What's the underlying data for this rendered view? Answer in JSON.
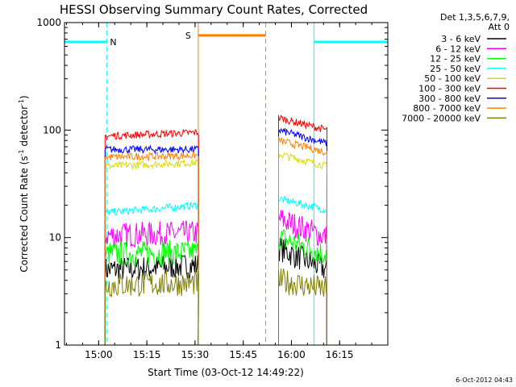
{
  "chart_data": {
    "type": "line",
    "title": "HESSI Observing Summary Count Rates, Corrected",
    "xlabel": "Start Time (03-Oct-12 14:49:22)",
    "ylabel_main": "Corrected Count Rate (s",
    "ylabel_sup1": "-1",
    "ylabel_mid": " detector",
    "ylabel_sup2": "-1",
    "ylabel_end": ")",
    "ylog": true,
    "ylim": [
      1,
      1000
    ],
    "xlim": [
      "14:49:22",
      "16:30:00"
    ],
    "xticks": [
      {
        "t": "15:00",
        "label": "15:00"
      },
      {
        "t": "15:15",
        "label": "15:15"
      },
      {
        "t": "15:30",
        "label": "15:30"
      },
      {
        "t": "15:45",
        "label": "15:45"
      },
      {
        "t": "16:00",
        "label": "16:00"
      },
      {
        "t": "16:15",
        "label": "16:15"
      }
    ],
    "yticks": [
      {
        "v": 1,
        "label": "1"
      },
      {
        "v": 10,
        "label": "10"
      },
      {
        "v": 100,
        "label": "100"
      },
      {
        "v": 1000,
        "label": "1000"
      }
    ],
    "legend_header": [
      "Det 1,3,5,6,7,9,",
      "Att 0"
    ],
    "legend_position": "right",
    "timestamp": "6-Oct-2012 04:43",
    "segments": [
      {
        "start": "15:02",
        "end": "15:31"
      },
      {
        "start": "15:56",
        "end": "16:11"
      }
    ],
    "series": [
      {
        "name": "3 - 6 keV",
        "color": "#000000",
        "seg1": [
          5.0,
          5.5
        ],
        "seg2": [
          8.0,
          5.0
        ]
      },
      {
        "name": "6 - 12 keV",
        "color": "#ff00ff",
        "seg1": [
          10.5,
          11.0
        ],
        "seg2": [
          15.0,
          10.0
        ]
      },
      {
        "name": "12 - 25 keV",
        "color": "#00ff00",
        "seg1": [
          7.0,
          7.3
        ],
        "seg2": [
          10.0,
          7.0
        ]
      },
      {
        "name": "25 - 50 keV",
        "color": "#00ffff",
        "seg1": [
          17.0,
          20.0
        ],
        "seg2": [
          23.0,
          18.0
        ]
      },
      {
        "name": "50 - 100 keV",
        "color": "#dddd00",
        "seg1": [
          46.0,
          50.0
        ],
        "seg2": [
          60.0,
          46.0
        ]
      },
      {
        "name": "100 - 300 keV",
        "color": "#ff0000",
        "seg1": [
          88.0,
          95.0
        ],
        "seg2": [
          130.0,
          100.0
        ]
      },
      {
        "name": "300 - 800 keV",
        "color": "#0000ff",
        "seg1": [
          66.0,
          66.0
        ],
        "seg2": [
          100.0,
          75.0
        ]
      },
      {
        "name": "800 - 7000 keV",
        "color": "#ff8000",
        "seg1": [
          56.0,
          58.0
        ],
        "seg2": [
          80.0,
          62.0
        ]
      },
      {
        "name": "7000 - 20000 keV",
        "color": "#808000",
        "seg1": [
          3.6,
          3.8
        ],
        "seg2": [
          4.0,
          3.3
        ]
      }
    ],
    "annotations": {
      "night_periods": [
        {
          "label": "N",
          "start": "14:49:22",
          "end": "15:02:30",
          "level": 660
        },
        {
          "label": "N",
          "start": "16:07",
          "end": "16:30",
          "level": 660
        }
      ],
      "saa_period": {
        "label": "S",
        "start": "15:31",
        "end": "15:52",
        "level": 760
      },
      "colors": {
        "night": "#00ffff",
        "saa": "#ff8000"
      }
    }
  }
}
